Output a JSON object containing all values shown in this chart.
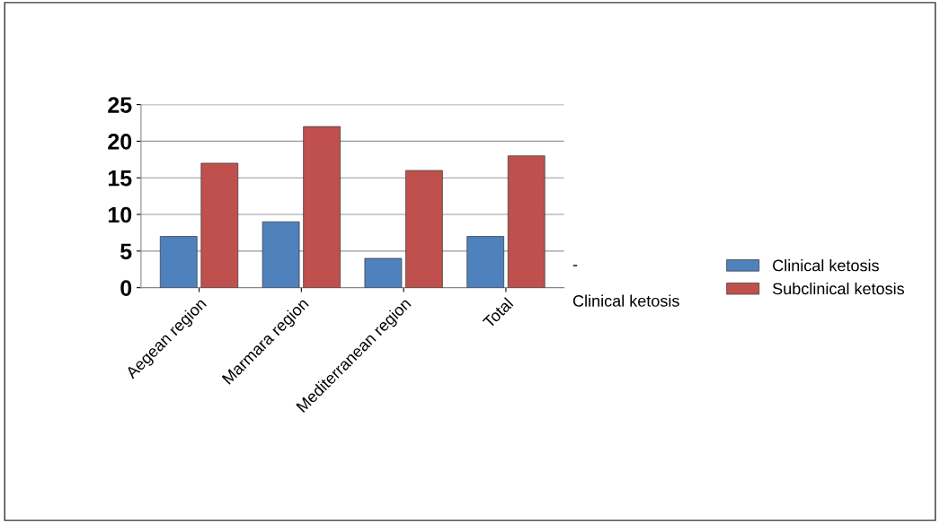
{
  "chart_data": {
    "type": "bar",
    "categories": [
      "Aegean region",
      "Marmara region",
      "Mediterranean region",
      "Total"
    ],
    "series": [
      {
        "name": "Clinical ketosis",
        "color": "#4f81bd",
        "values": [
          7,
          9,
          4,
          7
        ]
      },
      {
        "name": "Subclinical ketosis",
        "color": "#c0504d",
        "values": [
          17,
          22,
          16,
          18
        ]
      }
    ],
    "ylim": [
      0,
      25
    ],
    "yticks": [
      0,
      5,
      10,
      15,
      20,
      25
    ],
    "grid": "y",
    "legend": "right",
    "annotations": [
      "-",
      "Clinical ketosis"
    ]
  }
}
